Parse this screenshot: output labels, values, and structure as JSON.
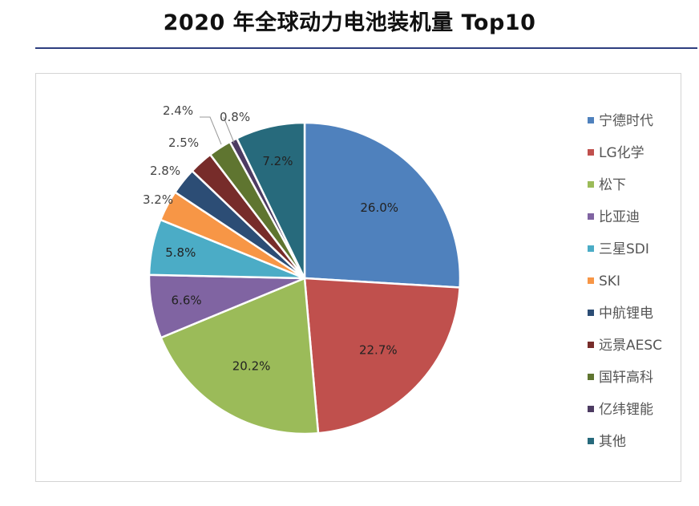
{
  "title": "2020 年全球动力电池装机量 Top10",
  "chart_data": {
    "type": "pie",
    "categories": [
      "宁德时代",
      "LG化学",
      "松下",
      "比亚迪",
      "三星SDI",
      "SKI",
      "中航锂电",
      "远景AESC",
      "国轩高科",
      "亿纬锂能",
      "其他"
    ],
    "values": [
      26.0,
      22.7,
      20.2,
      6.6,
      5.8,
      3.2,
      2.8,
      2.5,
      2.4,
      0.8,
      7.2
    ],
    "labels": [
      "26.0%",
      "22.7%",
      "20.2%",
      "6.6%",
      "5.8%",
      "3.2%",
      "2.8%",
      "2.5%",
      "2.4%",
      "0.8%",
      "7.2%"
    ],
    "colors": [
      "#4f81bd",
      "#c0504d",
      "#9bbb59",
      "#8064a2",
      "#4bacc6",
      "#f79646",
      "#2c4d75",
      "#772c2a",
      "#5f7530",
      "#4d3b62",
      "#276a7c"
    ],
    "legend_position": "right"
  }
}
